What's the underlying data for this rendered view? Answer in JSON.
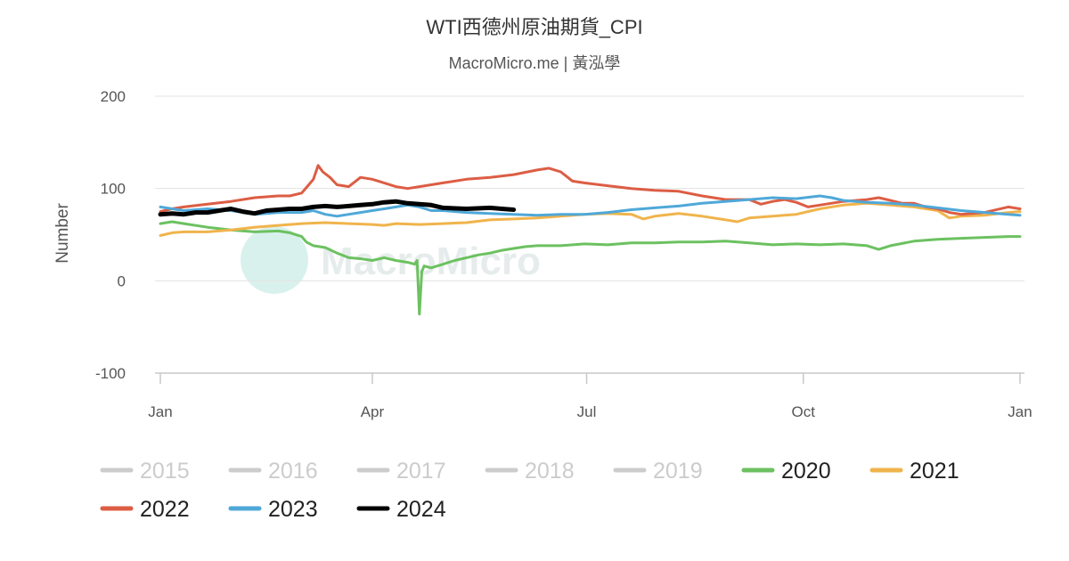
{
  "chart_data": {
    "type": "line",
    "title": "WTI西德州原油期貨_CPI",
    "subtitle": "MacroMicro.me | 黃泓學",
    "watermark": "MacroMicro",
    "ylabel": "Number",
    "ylim": [
      -100,
      200
    ],
    "yticks": [
      200,
      100,
      0,
      -100
    ],
    "xlim": [
      0,
      365
    ],
    "xticks": [
      {
        "label": "Jan",
        "day": 0
      },
      {
        "label": "Apr",
        "day": 90
      },
      {
        "label": "Jul",
        "day": 181
      },
      {
        "label": "Oct",
        "day": 273
      },
      {
        "label": "Jan",
        "day": 365
      }
    ],
    "grid": true,
    "legend_position": "bottom",
    "inactive_color": "#cccccc",
    "series": [
      {
        "name": "2015",
        "visible": false,
        "color": "#cccccc",
        "points": []
      },
      {
        "name": "2016",
        "visible": false,
        "color": "#cccccc",
        "points": []
      },
      {
        "name": "2017",
        "visible": false,
        "color": "#cccccc",
        "points": []
      },
      {
        "name": "2018",
        "visible": false,
        "color": "#cccccc",
        "points": []
      },
      {
        "name": "2019",
        "visible": false,
        "color": "#cccccc",
        "points": []
      },
      {
        "name": "2020",
        "visible": true,
        "color": "#6cc160",
        "points": [
          [
            0,
            62
          ],
          [
            5,
            64
          ],
          [
            10,
            62
          ],
          [
            20,
            58
          ],
          [
            30,
            55
          ],
          [
            40,
            53
          ],
          [
            50,
            54
          ],
          [
            55,
            52
          ],
          [
            60,
            48
          ],
          [
            62,
            42
          ],
          [
            65,
            38
          ],
          [
            70,
            36
          ],
          [
            75,
            30
          ],
          [
            80,
            25
          ],
          [
            85,
            24
          ],
          [
            90,
            22
          ],
          [
            95,
            25
          ],
          [
            100,
            22
          ],
          [
            105,
            20
          ],
          [
            108,
            18
          ],
          [
            109,
            22
          ],
          [
            110,
            -36
          ],
          [
            111,
            10
          ],
          [
            112,
            16
          ],
          [
            115,
            14
          ],
          [
            120,
            18
          ],
          [
            125,
            22
          ],
          [
            130,
            25
          ],
          [
            135,
            28
          ],
          [
            140,
            30
          ],
          [
            145,
            33
          ],
          [
            150,
            35
          ],
          [
            155,
            37
          ],
          [
            160,
            38
          ],
          [
            170,
            38
          ],
          [
            180,
            40
          ],
          [
            190,
            39
          ],
          [
            200,
            41
          ],
          [
            210,
            41
          ],
          [
            220,
            42
          ],
          [
            230,
            42
          ],
          [
            240,
            43
          ],
          [
            250,
            41
          ],
          [
            260,
            39
          ],
          [
            270,
            40
          ],
          [
            280,
            39
          ],
          [
            290,
            40
          ],
          [
            300,
            38
          ],
          [
            305,
            34
          ],
          [
            310,
            38
          ],
          [
            320,
            43
          ],
          [
            330,
            45
          ],
          [
            340,
            46
          ],
          [
            350,
            47
          ],
          [
            360,
            48
          ],
          [
            365,
            48
          ]
        ]
      },
      {
        "name": "2021",
        "visible": true,
        "color": "#f0b44c",
        "points": [
          [
            0,
            49
          ],
          [
            5,
            52
          ],
          [
            10,
            53
          ],
          [
            20,
            53
          ],
          [
            30,
            55
          ],
          [
            40,
            58
          ],
          [
            50,
            60
          ],
          [
            60,
            62
          ],
          [
            70,
            63
          ],
          [
            80,
            62
          ],
          [
            90,
            61
          ],
          [
            95,
            60
          ],
          [
            100,
            62
          ],
          [
            110,
            61
          ],
          [
            120,
            62
          ],
          [
            130,
            63
          ],
          [
            140,
            66
          ],
          [
            150,
            67
          ],
          [
            160,
            68
          ],
          [
            170,
            70
          ],
          [
            180,
            72
          ],
          [
            190,
            73
          ],
          [
            200,
            72
          ],
          [
            205,
            67
          ],
          [
            210,
            70
          ],
          [
            220,
            73
          ],
          [
            230,
            70
          ],
          [
            240,
            66
          ],
          [
            245,
            64
          ],
          [
            250,
            68
          ],
          [
            260,
            70
          ],
          [
            270,
            72
          ],
          [
            280,
            78
          ],
          [
            290,
            82
          ],
          [
            300,
            84
          ],
          [
            310,
            82
          ],
          [
            320,
            80
          ],
          [
            330,
            76
          ],
          [
            335,
            68
          ],
          [
            340,
            70
          ],
          [
            350,
            71
          ],
          [
            360,
            74
          ],
          [
            365,
            75
          ]
        ]
      },
      {
        "name": "2022",
        "visible": true,
        "color": "#dc5d44",
        "points": [
          [
            0,
            75
          ],
          [
            5,
            78
          ],
          [
            10,
            80
          ],
          [
            20,
            83
          ],
          [
            30,
            86
          ],
          [
            40,
            90
          ],
          [
            50,
            92
          ],
          [
            55,
            92
          ],
          [
            60,
            95
          ],
          [
            63,
            104
          ],
          [
            65,
            110
          ],
          [
            67,
            125
          ],
          [
            69,
            118
          ],
          [
            72,
            112
          ],
          [
            75,
            104
          ],
          [
            80,
            102
          ],
          [
            85,
            112
          ],
          [
            90,
            110
          ],
          [
            95,
            106
          ],
          [
            100,
            102
          ],
          [
            105,
            100
          ],
          [
            110,
            102
          ],
          [
            120,
            106
          ],
          [
            130,
            110
          ],
          [
            140,
            112
          ],
          [
            150,
            115
          ],
          [
            160,
            120
          ],
          [
            165,
            122
          ],
          [
            170,
            118
          ],
          [
            175,
            108
          ],
          [
            180,
            106
          ],
          [
            190,
            103
          ],
          [
            200,
            100
          ],
          [
            210,
            98
          ],
          [
            220,
            97
          ],
          [
            230,
            92
          ],
          [
            240,
            88
          ],
          [
            250,
            88
          ],
          [
            255,
            83
          ],
          [
            260,
            86
          ],
          [
            265,
            88
          ],
          [
            270,
            85
          ],
          [
            275,
            80
          ],
          [
            280,
            82
          ],
          [
            290,
            86
          ],
          [
            300,
            88
          ],
          [
            305,
            90
          ],
          [
            310,
            87
          ],
          [
            315,
            84
          ],
          [
            320,
            84
          ],
          [
            325,
            80
          ],
          [
            330,
            78
          ],
          [
            335,
            74
          ],
          [
            340,
            72
          ],
          [
            350,
            74
          ],
          [
            360,
            80
          ],
          [
            365,
            78
          ]
        ]
      },
      {
        "name": "2023",
        "visible": true,
        "color": "#4fa8d8",
        "points": [
          [
            0,
            80
          ],
          [
            5,
            78
          ],
          [
            10,
            76
          ],
          [
            20,
            78
          ],
          [
            30,
            76
          ],
          [
            40,
            72
          ],
          [
            50,
            74
          ],
          [
            60,
            74
          ],
          [
            65,
            76
          ],
          [
            70,
            72
          ],
          [
            75,
            70
          ],
          [
            80,
            72
          ],
          [
            85,
            74
          ],
          [
            90,
            76
          ],
          [
            95,
            78
          ],
          [
            100,
            80
          ],
          [
            105,
            82
          ],
          [
            110,
            80
          ],
          [
            115,
            76
          ],
          [
            120,
            76
          ],
          [
            130,
            74
          ],
          [
            140,
            73
          ],
          [
            150,
            72
          ],
          [
            160,
            71
          ],
          [
            170,
            72
          ],
          [
            180,
            72
          ],
          [
            190,
            74
          ],
          [
            200,
            77
          ],
          [
            210,
            79
          ],
          [
            220,
            81
          ],
          [
            230,
            84
          ],
          [
            240,
            86
          ],
          [
            250,
            88
          ],
          [
            260,
            90
          ],
          [
            270,
            89
          ],
          [
            280,
            92
          ],
          [
            285,
            90
          ],
          [
            290,
            87
          ],
          [
            300,
            85
          ],
          [
            310,
            84
          ],
          [
            320,
            82
          ],
          [
            330,
            79
          ],
          [
            340,
            76
          ],
          [
            350,
            74
          ],
          [
            360,
            72
          ],
          [
            365,
            71
          ]
        ]
      },
      {
        "name": "2024",
        "visible": true,
        "color": "#000000",
        "points": [
          [
            0,
            72
          ],
          [
            5,
            73
          ],
          [
            10,
            72
          ],
          [
            15,
            74
          ],
          [
            20,
            74
          ],
          [
            25,
            76
          ],
          [
            30,
            78
          ],
          [
            35,
            75
          ],
          [
            40,
            73
          ],
          [
            45,
            76
          ],
          [
            50,
            77
          ],
          [
            55,
            78
          ],
          [
            60,
            78
          ],
          [
            65,
            80
          ],
          [
            70,
            81
          ],
          [
            75,
            80
          ],
          [
            80,
            81
          ],
          [
            85,
            82
          ],
          [
            90,
            83
          ],
          [
            95,
            85
          ],
          [
            100,
            86
          ],
          [
            105,
            84
          ],
          [
            110,
            83
          ],
          [
            115,
            82
          ],
          [
            120,
            79
          ],
          [
            130,
            78
          ],
          [
            140,
            79
          ],
          [
            145,
            78
          ],
          [
            150,
            77
          ]
        ]
      }
    ]
  }
}
